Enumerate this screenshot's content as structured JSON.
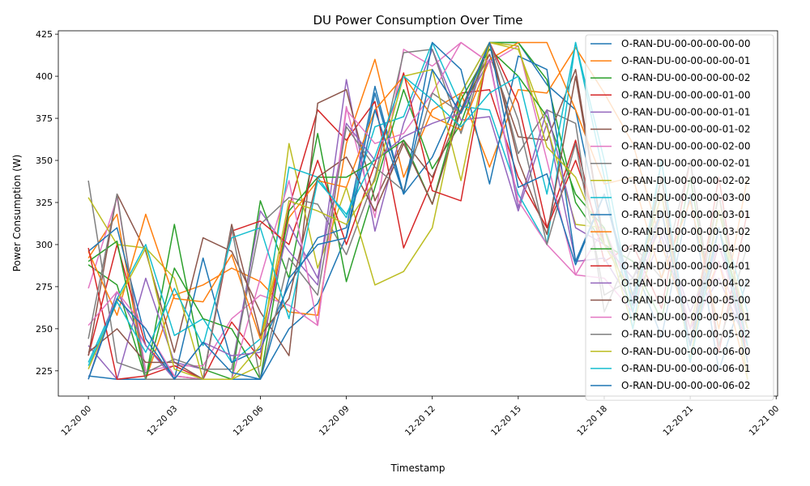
{
  "chart_data": {
    "type": "line",
    "title": "DU Power Consumption Over Time",
    "xlabel": "Timestamp",
    "ylabel": "Power Consumption (W)",
    "ylim": [
      210,
      427
    ],
    "xlim_hours": [
      -1.05,
      24.05
    ],
    "x_ticks": [
      {
        "hour": 0,
        "label": "12-20 00"
      },
      {
        "hour": 3,
        "label": "12-20 03"
      },
      {
        "hour": 6,
        "label": "12-20 06"
      },
      {
        "hour": 9,
        "label": "12-20 09"
      },
      {
        "hour": 12,
        "label": "12-20 12"
      },
      {
        "hour": 15,
        "label": "12-20 15"
      },
      {
        "hour": 18,
        "label": "12-20 18"
      },
      {
        "hour": 21,
        "label": "12-20 21"
      },
      {
        "hour": 24,
        "label": "12-21 00"
      }
    ],
    "y_ticks": [
      225,
      250,
      275,
      300,
      325,
      350,
      375,
      400,
      425
    ],
    "grid": false,
    "legend_position": "top-right",
    "x": [
      0,
      1,
      2,
      3,
      4,
      5,
      6,
      7,
      8,
      9,
      10,
      11,
      12,
      13,
      14,
      15,
      16,
      17,
      18,
      19,
      20,
      21,
      22,
      23
    ],
    "series": [
      {
        "name": "O-RAN-DU-00-00-00-00-00",
        "color": "#1f77b4",
        "values": [
          222,
          220,
          220,
          220,
          220,
          220,
          220,
          250,
          265,
          305,
          390,
          330,
          352,
          390,
          420,
          420,
          395,
          380,
          300,
          290,
          245,
          330,
          225,
          280
        ]
      },
      {
        "name": "O-RAN-DU-00-00-00-00-01",
        "color": "#ff7f0e",
        "values": [
          292,
          318,
          220,
          270,
          276,
          286,
          278,
          260,
          258,
          360,
          410,
          340,
          380,
          390,
          346,
          392,
          390,
          417,
          390,
          360,
          300,
          250,
          290,
          220
        ]
      },
      {
        "name": "O-RAN-DU-00-00-00-00-02",
        "color": "#2ca02c",
        "values": [
          288,
          276,
          220,
          312,
          226,
          220,
          326,
          280,
          366,
          278,
          334,
          392,
          345,
          372,
          420,
          420,
          398,
          325,
          300,
          290,
          255,
          340,
          240,
          300
        ]
      },
      {
        "name": "O-RAN-DU-00-00-00-01-00",
        "color": "#d62728",
        "values": [
          234,
          300,
          240,
          222,
          220,
          254,
          232,
          322,
          380,
          362,
          385,
          298,
          338,
          390,
          392,
          340,
          310,
          362,
          290,
          300,
          262,
          350,
          236,
          320
        ]
      },
      {
        "name": "O-RAN-DU-00-00-00-01-01",
        "color": "#9467bd",
        "values": [
          240,
          220,
          280,
          230,
          226,
          226,
          320,
          296,
          276,
          398,
          308,
          372,
          416,
          374,
          376,
          320,
          372,
          290,
          292,
          264,
          305,
          250,
          280,
          240
        ]
      },
      {
        "name": "O-RAN-DU-00-00-00-01-02",
        "color": "#8c564b",
        "values": [
          234,
          330,
          296,
          236,
          304,
          296,
          260,
          234,
          384,
          392,
          326,
          362,
          340,
          380,
          413,
          364,
          362,
          404,
          300,
          280,
          320,
          240,
          300,
          240
        ]
      },
      {
        "name": "O-RAN-DU-00-00-00-02-00",
        "color": "#e377c2",
        "values": [
          274,
          328,
          225,
          228,
          228,
          256,
          270,
          264,
          252,
          382,
          316,
          416,
          406,
          420,
          408,
          418,
          350,
          282,
          310,
          268,
          330,
          240,
          290,
          240
        ]
      },
      {
        "name": "O-RAN-DU-00-00-00-02-01",
        "color": "#7f7f7f",
        "values": [
          338,
          230,
          224,
          232,
          226,
          226,
          312,
          328,
          324,
          294,
          340,
          414,
          416,
          366,
          420,
          354,
          380,
          372,
          260,
          300,
          280,
          350,
          240,
          300
        ]
      },
      {
        "name": "O-RAN-DU-00-00-00-02-02",
        "color": "#bcbd22",
        "values": [
          328,
          300,
          298,
          280,
          220,
          220,
          228,
          360,
          286,
          334,
          276,
          284,
          310,
          390,
          420,
          416,
          370,
          312,
          310,
          250,
          320,
          250,
          330,
          220
        ]
      },
      {
        "name": "O-RAN-DU-00-00-00-03-00",
        "color": "#17becf",
        "values": [
          230,
          268,
          300,
          246,
          256,
          230,
          244,
          346,
          340,
          316,
          370,
          376,
          420,
          382,
          380,
          330,
          300,
          420,
          340,
          250,
          350,
          230,
          320,
          260
        ]
      },
      {
        "name": "O-RAN-DU-00-00-00-03-01",
        "color": "#1f77b4",
        "values": [
          296,
          310,
          244,
          220,
          292,
          230,
          238,
          276,
          304,
          310,
          394,
          330,
          420,
          404,
          336,
          412,
          404,
          290,
          330,
          265,
          340,
          240,
          320,
          250
        ]
      },
      {
        "name": "O-RAN-DU-00-00-00-03-02",
        "color": "#ff7f0e",
        "values": [
          296,
          258,
          318,
          268,
          266,
          294,
          244,
          316,
          338,
          334,
          380,
          400,
          376,
          368,
          410,
          420,
          420,
          380,
          336,
          340,
          280,
          326,
          250,
          340
        ]
      },
      {
        "name": "O-RAN-DU-00-00-00-04-00",
        "color": "#2ca02c",
        "values": [
          290,
          302,
          220,
          286,
          256,
          250,
          220,
          320,
          340,
          340,
          350,
          362,
          324,
          386,
          416,
          400,
          376,
          330,
          310,
          260,
          340,
          230,
          310,
          250
        ]
      },
      {
        "name": "O-RAN-DU-00-00-00-04-01",
        "color": "#d62728",
        "values": [
          298,
          220,
          222,
          228,
          220,
          308,
          314,
          300,
          350,
          300,
          348,
          402,
          332,
          326,
          420,
          384,
          310,
          350,
          300,
          270,
          330,
          240,
          340,
          230
        ]
      },
      {
        "name": "O-RAN-DU-00-00-00-04-02",
        "color": "#9467bd",
        "values": [
          220,
          272,
          240,
          220,
          242,
          234,
          236,
          312,
          280,
          372,
          350,
          364,
          372,
          378,
          410,
          322,
          380,
          310,
          300,
          280,
          310,
          260,
          300,
          250
        ]
      },
      {
        "name": "O-RAN-DU-00-00-00-05-00",
        "color": "#8c564b",
        "values": [
          236,
          250,
          230,
          230,
          220,
          312,
          246,
          268,
          340,
          352,
          320,
          360,
          324,
          380,
          420,
          350,
          306,
          400,
          300,
          270,
          340,
          230,
          320,
          250
        ]
      },
      {
        "name": "O-RAN-DU-00-00-00-05-01",
        "color": "#e377c2",
        "values": [
          252,
          272,
          250,
          222,
          220,
          220,
          280,
          338,
          252,
          380,
          360,
          366,
          390,
          420,
          408,
          326,
          300,
          282,
          280,
          260,
          320,
          250,
          300,
          240
        ]
      },
      {
        "name": "O-RAN-DU-00-00-00-05-02",
        "color": "#7f7f7f",
        "values": [
          244,
          330,
          220,
          220,
          220,
          310,
          220,
          292,
          270,
          370,
          346,
          332,
          390,
          378,
          420,
          374,
          300,
          360,
          270,
          280,
          320,
          240,
          330,
          240
        ]
      },
      {
        "name": "O-RAN-DU-00-00-00-06-00",
        "color": "#bcbd22",
        "values": [
          226,
          266,
          298,
          226,
          220,
          220,
          240,
          326,
          320,
          312,
          338,
          400,
          404,
          338,
          420,
          418,
          358,
          340,
          300,
          270,
          330,
          232,
          320,
          250
        ]
      },
      {
        "name": "O-RAN-DU-00-00-00-06-01",
        "color": "#17becf",
        "values": [
          228,
          266,
          236,
          274,
          240,
          304,
          310,
          256,
          338,
          318,
          352,
          400,
          386,
          370,
          390,
          400,
          330,
          420,
          350,
          260,
          350,
          230,
          310,
          240
        ]
      },
      {
        "name": "O-RAN-DU-00-00-00-06-02",
        "color": "#1f77b4",
        "values": [
          220,
          268,
          250,
          220,
          242,
          224,
          220,
          280,
          300,
          304,
          380,
          330,
          404,
          378,
          420,
          334,
          342,
          288,
          330,
          270,
          320,
          240,
          310,
          230
        ]
      }
    ]
  }
}
